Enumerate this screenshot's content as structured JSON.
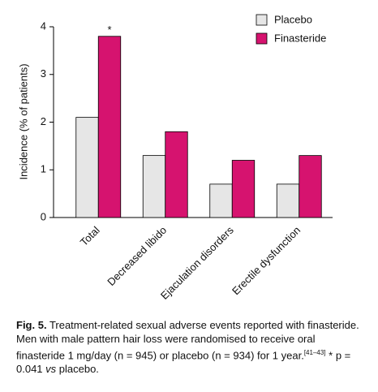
{
  "chart_data": {
    "type": "bar",
    "ylabel": "Incidence (% of patients)",
    "categories": [
      "Total",
      "Decreased libido",
      "Ejaculation disorders",
      "Erectile dysfunction"
    ],
    "series": [
      {
        "name": "Placebo",
        "color": "#e6e6e6",
        "values": [
          2.1,
          1.3,
          0.7,
          0.7
        ]
      },
      {
        "name": "Finasteride",
        "color": "#d6136f",
        "values": [
          3.8,
          1.8,
          1.2,
          1.3
        ]
      }
    ],
    "annotation": "*",
    "ylim": [
      0,
      4
    ],
    "yticks": [
      0,
      1,
      2,
      3,
      4
    ],
    "grid": false,
    "legend": "top-right"
  },
  "caption": {
    "label": "Fig. 5.",
    "text": " Treatment-related sexual adverse events reported with finasteride. Men with male pattern hair loss were randomised to receive oral finasteride 1 mg/day (n = 945) or placebo (n = 934) for 1 year.",
    "reference": "[41–43]",
    "note": " * p = 0.041 ",
    "note_emphasis": "vs",
    "note_end": " placebo."
  }
}
